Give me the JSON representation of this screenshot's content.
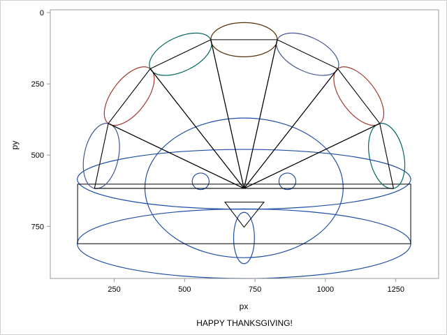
{
  "chart_data": {
    "type": "scatter",
    "title": "",
    "footnote": "HAPPY THANKSGIVING!",
    "xlabel": "px",
    "ylabel": "py",
    "xlim": [
      23,
      1402
    ],
    "ylim": [
      -10,
      933
    ],
    "y_reversed": true,
    "xticks": [
      250,
      500,
      750,
      1000,
      1250
    ],
    "yticks": [
      0,
      250,
      500,
      750
    ],
    "grid": false,
    "colors": {
      "face": "#1f4ea6",
      "frame": "#9a9a9a",
      "line": "#000000"
    },
    "fan_center": [
      711,
      617
    ],
    "fan_points": [
      [
        180,
        617
      ],
      [
        229,
        389
      ],
      [
        378,
        197
      ],
      [
        593,
        95
      ],
      [
        829,
        95
      ],
      [
        1044,
        197
      ],
      [
        1193,
        389
      ],
      [
        1242,
        617
      ]
    ],
    "feather_width": 60,
    "feather_colors": [
      "#445694",
      "#a23a2e",
      "#01665e",
      "#543005",
      "#445694",
      "#a23a2e",
      "#01665e"
    ],
    "rect": {
      "x0": 120,
      "x1": 1303,
      "y0": 602,
      "y1": 811
    },
    "ellipses": [
      {
        "name": "cylinder-top",
        "cx": 711,
        "cy": 585,
        "rx": 592,
        "ry": 105
      },
      {
        "name": "cylinder-bottom",
        "cx": 711,
        "cy": 811,
        "rx": 592,
        "ry": 122
      },
      {
        "name": "face",
        "cx": 711,
        "cy": 615,
        "rx": 352,
        "ry": 245
      },
      {
        "name": "left-eye",
        "cx": 557,
        "cy": 592,
        "rx": 30,
        "ry": 29
      },
      {
        "name": "right-eye",
        "cx": 865,
        "cy": 592,
        "rx": 30,
        "ry": 29
      },
      {
        "name": "wattle",
        "cx": 711,
        "cy": 791,
        "rx": 37,
        "ry": 90
      }
    ],
    "nose": [
      [
        643,
        665
      ],
      [
        782,
        665
      ],
      [
        711,
        753
      ]
    ]
  }
}
